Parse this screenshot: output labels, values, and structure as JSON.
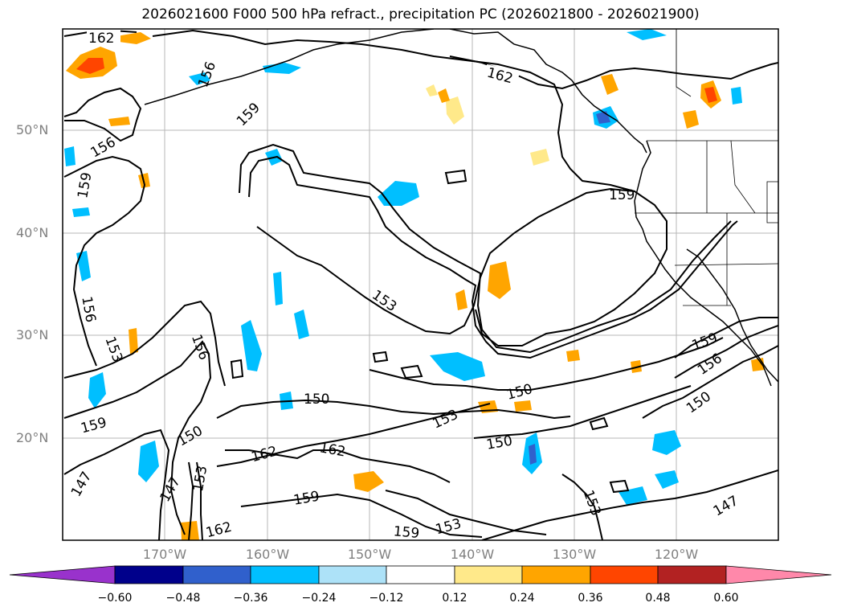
{
  "title": "2026021600 F000 500 hPa refract., precipitation PC (2026021800 - 2026021900)",
  "lat_labels": [
    "50°N",
    "40°N",
    "30°N",
    "20°N"
  ],
  "lon_labels": [
    "170°W",
    "160°W",
    "150°W",
    "140°W",
    "130°W",
    "120°W"
  ],
  "contour_labels": [
    "162",
    "162",
    "159",
    "156",
    "159",
    "156",
    "153",
    "156",
    "153",
    "159",
    "150",
    "153",
    "147",
    "147",
    "153",
    "162",
    "162",
    "159",
    "159",
    "153",
    "150",
    "150",
    "156",
    "153",
    "150",
    "147",
    "159",
    "156",
    "150",
    "159",
    "162"
  ],
  "colorbar": {
    "ticks": [
      "−0.60",
      "−0.48",
      "−0.36",
      "−0.24",
      "−0.12",
      "0.12",
      "0.24",
      "0.36",
      "0.48",
      "0.60"
    ],
    "colors": [
      "#9932CC",
      "#00008B",
      "#3060CC",
      "#00BFFF",
      "#ADE2F8",
      "#FFFFFF",
      "#FFE98A",
      "#FFA500",
      "#FF4500",
      "#B22222",
      "#FF88AA"
    ]
  },
  "fill_colors": {
    "light_blue": "#ADE2F8",
    "blue": "#00BFFF",
    "mid_blue": "#3060CC",
    "navy": "#00008B",
    "purple": "#9932CC",
    "yellow": "#FFE98A",
    "orange": "#FFA500",
    "red_orange": "#FF4500"
  }
}
